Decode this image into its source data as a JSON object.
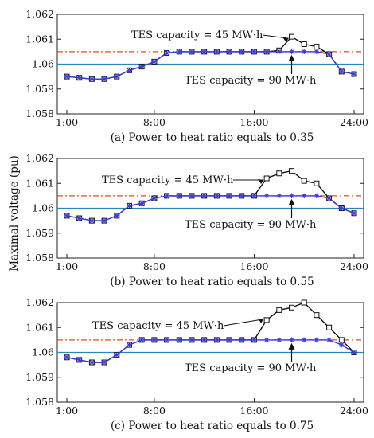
{
  "figure": {
    "ylabel": "Maximal voltage (pu)"
  },
  "chart_data": [
    {
      "type": "line",
      "caption": "(a) Power to heat ratio equals to 0.35",
      "ylabel": "Maximal voltage (pu)",
      "x": [
        1,
        2,
        3,
        4,
        5,
        6,
        7,
        8,
        9,
        10,
        11,
        12,
        13,
        14,
        15,
        16,
        17,
        18,
        19,
        20,
        21,
        22,
        23,
        24
      ],
      "x_ticks": [
        {
          "value": 1,
          "label": "1:00"
        },
        {
          "value": 8,
          "label": "8:00"
        },
        {
          "value": 16,
          "label": "16:00"
        },
        {
          "value": 24,
          "label": "24:00"
        }
      ],
      "ylim": [
        1.058,
        1.062
      ],
      "y_ticks": [
        "1.058",
        "1.059",
        "1.06",
        "1.061",
        "1.062"
      ],
      "series": [
        {
          "values": [
            1.0595,
            1.05945,
            1.0594,
            1.0594,
            1.0595,
            1.05975,
            1.0599,
            1.0601,
            1.06045,
            1.0605,
            1.0605,
            1.0605,
            1.0605,
            1.0605,
            1.0605,
            1.0605,
            1.0605,
            1.06055,
            1.0611,
            1.0608,
            1.0607,
            1.0604,
            1.0597,
            1.0596
          ],
          "color": "#111111",
          "marker": "square"
        },
        {
          "values": [
            1.0595,
            1.05945,
            1.0594,
            1.0594,
            1.0595,
            1.05975,
            1.0599,
            1.0601,
            1.06045,
            1.0605,
            1.0605,
            1.0605,
            1.0605,
            1.0605,
            1.0605,
            1.0605,
            1.0605,
            1.0605,
            1.0605,
            1.0605,
            1.0605,
            1.0604,
            1.0597,
            1.0596
          ],
          "color": "#3b3bd6",
          "marker": "star"
        }
      ],
      "reference_lines": [
        {
          "value": 1.06,
          "color": "#2a86b8",
          "style": "solid"
        },
        {
          "value": 1.0605,
          "color": "#d9502a",
          "style": "dash-dot"
        }
      ],
      "annotations": [
        {
          "text": "TES capacity = 45 MW·h",
          "target_x": 19,
          "target_y": 1.0611
        },
        {
          "text": "TES capacity = 90 MW·h",
          "target_x": 19,
          "target_y": 1.0605
        }
      ]
    },
    {
      "type": "line",
      "caption": "(b) Power to heat ratio equals to 0.55",
      "ylabel": "Maximal voltage (pu)",
      "x": [
        1,
        2,
        3,
        4,
        5,
        6,
        7,
        8,
        9,
        10,
        11,
        12,
        13,
        14,
        15,
        16,
        17,
        18,
        19,
        20,
        21,
        22,
        23,
        24
      ],
      "x_ticks": [
        {
          "value": 1,
          "label": "1:00"
        },
        {
          "value": 8,
          "label": "8:00"
        },
        {
          "value": 16,
          "label": "16:00"
        },
        {
          "value": 24,
          "label": "24:00"
        }
      ],
      "ylim": [
        1.058,
        1.062
      ],
      "y_ticks": [
        "1.058",
        "1.059",
        "1.06",
        "1.061",
        "1.062"
      ],
      "series": [
        {
          "values": [
            1.0597,
            1.0596,
            1.0595,
            1.0595,
            1.0597,
            1.0601,
            1.0602,
            1.0604,
            1.0605,
            1.0605,
            1.0605,
            1.0605,
            1.0605,
            1.0605,
            1.0605,
            1.0605,
            1.0612,
            1.0614,
            1.0615,
            1.0611,
            1.061,
            1.0604,
            1.06,
            1.0598
          ],
          "color": "#111111",
          "marker": "square"
        },
        {
          "values": [
            1.0597,
            1.0596,
            1.0595,
            1.0595,
            1.0597,
            1.0601,
            1.0602,
            1.0604,
            1.0605,
            1.0605,
            1.0605,
            1.0605,
            1.0605,
            1.0605,
            1.0605,
            1.0605,
            1.0605,
            1.0605,
            1.0605,
            1.0605,
            1.0605,
            1.0604,
            1.06,
            1.0598
          ],
          "color": "#3b3bd6",
          "marker": "star"
        }
      ],
      "reference_lines": [
        {
          "value": 1.06,
          "color": "#2a86b8",
          "style": "solid"
        },
        {
          "value": 1.0605,
          "color": "#d9502a",
          "style": "dash-dot"
        }
      ],
      "annotations": [
        {
          "text": "TES capacity = 45 MW·h",
          "target_x": 17,
          "target_y": 1.0612
        },
        {
          "text": "TES capacity = 90 MW·h",
          "target_x": 19,
          "target_y": 1.0605
        }
      ]
    },
    {
      "type": "line",
      "caption": "(c) Power to heat ratio equals to 0.75",
      "ylabel": "Maximal voltage (pu)",
      "x": [
        1,
        2,
        3,
        4,
        5,
        6,
        7,
        8,
        9,
        10,
        11,
        12,
        13,
        14,
        15,
        16,
        17,
        18,
        19,
        20,
        21,
        22,
        23,
        24
      ],
      "x_ticks": [
        {
          "value": 1,
          "label": "1:00"
        },
        {
          "value": 8,
          "label": "8:00"
        },
        {
          "value": 16,
          "label": "16:00"
        },
        {
          "value": 24,
          "label": "24:00"
        }
      ],
      "ylim": [
        1.058,
        1.062
      ],
      "y_ticks": [
        "1.058",
        "1.059",
        "1.06",
        "1.061",
        "1.062"
      ],
      "series": [
        {
          "values": [
            1.0598,
            1.0597,
            1.0596,
            1.0596,
            1.0599,
            1.0603,
            1.0605,
            1.0605,
            1.0605,
            1.0605,
            1.0605,
            1.0605,
            1.0605,
            1.0605,
            1.0605,
            1.0605,
            1.0613,
            1.0617,
            1.0618,
            1.062,
            1.0615,
            1.061,
            1.0605,
            1.06
          ],
          "color": "#111111",
          "marker": "square"
        },
        {
          "values": [
            1.0598,
            1.0597,
            1.0596,
            1.0596,
            1.0599,
            1.0603,
            1.0605,
            1.0605,
            1.0605,
            1.0605,
            1.0605,
            1.0605,
            1.0605,
            1.0605,
            1.0605,
            1.0605,
            1.0605,
            1.0605,
            1.0605,
            1.0605,
            1.0605,
            1.0605,
            1.0603,
            1.06
          ],
          "color": "#3b3bd6",
          "marker": "star"
        }
      ],
      "reference_lines": [
        {
          "value": 1.06,
          "color": "#2a86b8",
          "style": "solid"
        },
        {
          "value": 1.0605,
          "color": "#d9502a",
          "style": "dash-dot"
        }
      ],
      "annotations": [
        {
          "text": "TES capacity = 45 MW·h",
          "target_x": 17,
          "target_y": 1.0614
        },
        {
          "text": "TES capacity = 90 MW·h",
          "target_x": 19,
          "target_y": 1.0605
        }
      ]
    }
  ]
}
